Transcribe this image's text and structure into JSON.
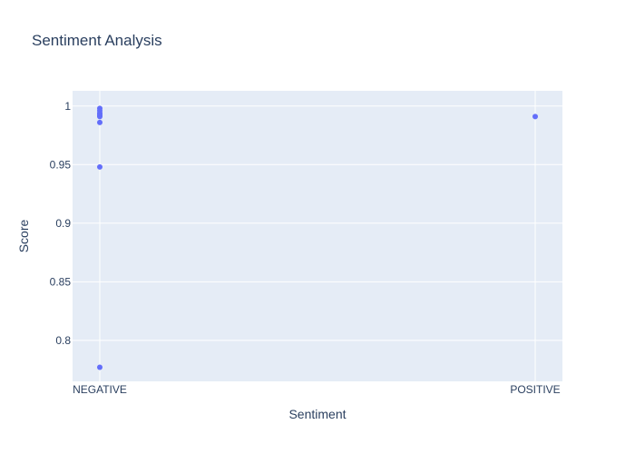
{
  "chart_data": {
    "type": "scatter",
    "title": "Sentiment Analysis",
    "xlabel": "Sentiment",
    "ylabel": "Score",
    "categories": [
      "NEGATIVE",
      "POSITIVE"
    ],
    "y_ticks": [
      0.8,
      0.85,
      0.9,
      0.95,
      1
    ],
    "y_tick_labels": [
      "0.8",
      "0.85",
      "0.9",
      "0.95",
      "1"
    ],
    "ylim": [
      0.765,
      1.013
    ],
    "grid": true,
    "legend": "none",
    "colors": {
      "plot_background": "#e5ecf6",
      "marker": "#636efa",
      "text": "#2a3f5f",
      "grid": "#ffffff"
    },
    "points": [
      {
        "x": "NEGATIVE",
        "y": 0.998
      },
      {
        "x": "NEGATIVE",
        "y": 0.996
      },
      {
        "x": "NEGATIVE",
        "y": 0.994
      },
      {
        "x": "NEGATIVE",
        "y": 0.993
      },
      {
        "x": "NEGATIVE",
        "y": 0.992
      },
      {
        "x": "NEGATIVE",
        "y": 0.991
      },
      {
        "x": "NEGATIVE",
        "y": 0.986
      },
      {
        "x": "NEGATIVE",
        "y": 0.948
      },
      {
        "x": "NEGATIVE",
        "y": 0.777
      },
      {
        "x": "POSITIVE",
        "y": 0.991
      }
    ]
  }
}
